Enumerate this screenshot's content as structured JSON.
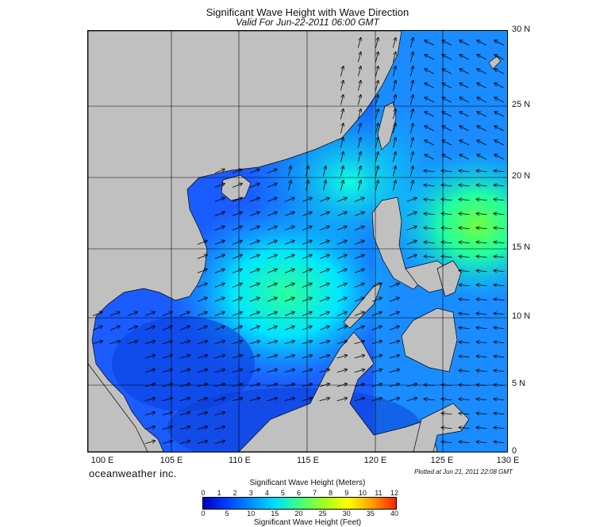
{
  "title": "Significant Wave Height with Wave Direction",
  "subtitle": "Valid For Jun-22-2011 06:00 GMT",
  "lat_labels": [
    "30 N",
    "25 N",
    "20 N",
    "15 N",
    "10 N",
    "5 N",
    "0"
  ],
  "lon_labels": [
    "100 E",
    "105 E",
    "110 E",
    "115 E",
    "120 E",
    "125 E",
    "130 E"
  ],
  "brand": "oceanweather inc.",
  "plotted": "Plotted at Jun 21, 2011 22:08 GMT",
  "colorbar": {
    "title_meters": "Significant Wave Height (Meters)",
    "title_feet": "Significant Wave Height (Feet)",
    "ticks_meters": [
      "0",
      "1",
      "2",
      "3",
      "4",
      "5",
      "6",
      "7",
      "8",
      "9",
      "10",
      "11",
      "12"
    ],
    "ticks_feet": [
      "0",
      "5",
      "10",
      "15",
      "20",
      "25",
      "30",
      "35",
      "40"
    ],
    "colors": [
      "#0000c0",
      "#0040ff",
      "#0090ff",
      "#00e0ff",
      "#40ff80",
      "#a0ff20",
      "#ffff00",
      "#ffa000",
      "#ff2000"
    ]
  },
  "map": {
    "extent": {
      "lon_min": 99,
      "lon_max": 130,
      "lat_min": 0,
      "lat_max": 30
    },
    "land_color": "#c0c0c0",
    "sea_color": "#1a5cff"
  }
}
